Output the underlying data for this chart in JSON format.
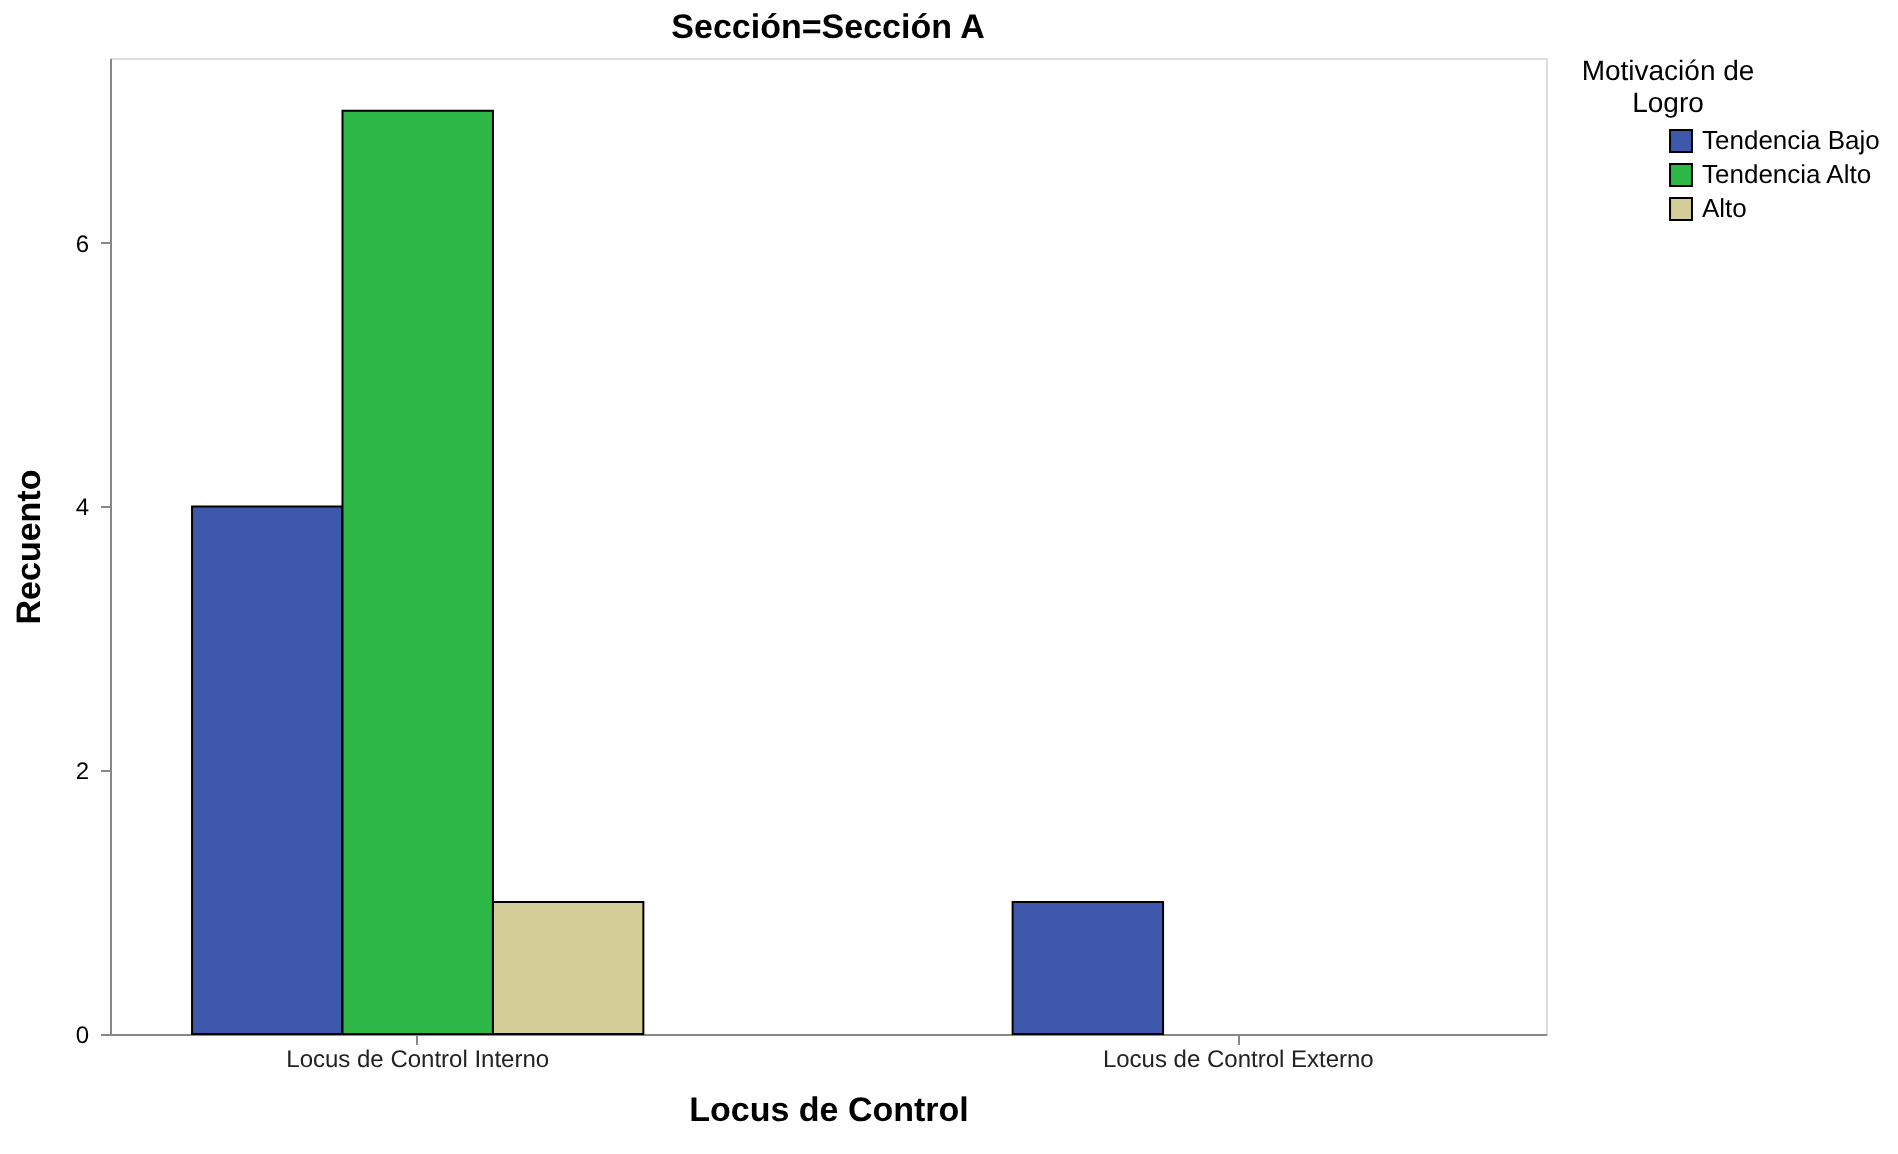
{
  "chart_data": {
    "type": "bar",
    "title": "Sección=Sección A",
    "xlabel": "Locus de Control",
    "ylabel": "Recuento",
    "legend_title": "Motivación de Logro",
    "categories": [
      "Locus de Control Interno",
      "Locus de Control Externo"
    ],
    "series": [
      {
        "name": "Tendencia Bajo",
        "color": "#3e58ac",
        "values": [
          4,
          1
        ]
      },
      {
        "name": "Tendencia Alto",
        "color": "#2eb848",
        "values": [
          7,
          null
        ]
      },
      {
        "name": "Alto",
        "color": "#d3ce97",
        "values": [
          1,
          null
        ]
      }
    ],
    "ylim": [
      0,
      7.4
    ],
    "yticks": [
      0,
      2,
      4,
      6
    ],
    "grid": false,
    "legend": "top right"
  }
}
